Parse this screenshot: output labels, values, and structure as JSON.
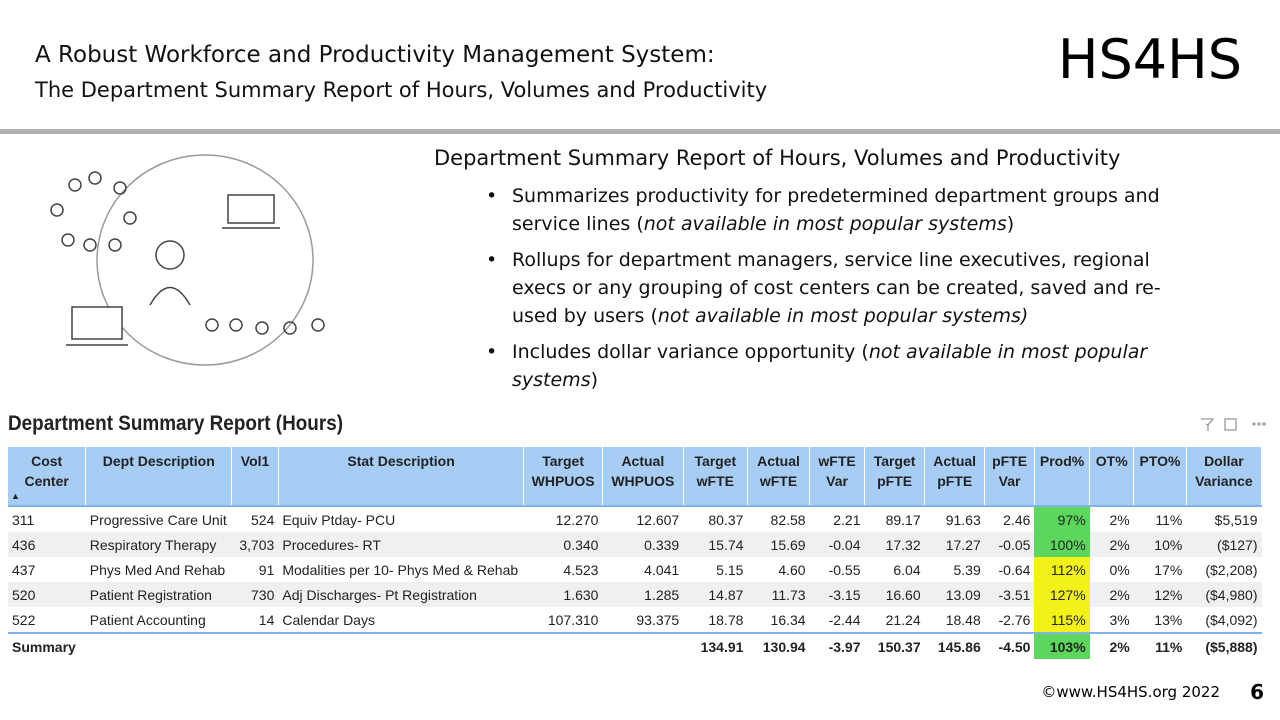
{
  "header": {
    "title": "A Robust Workforce and Productivity Management System:",
    "subtitle": "The Department Summary Report of Hours, Volumes and Productivity",
    "logo": "HS4HS"
  },
  "section": {
    "heading": "Department Summary Report of Hours, Volumes and Productivity",
    "bullets": [
      [
        "Summarizes productivity for predetermined department groups and service lines (",
        "not available in most  popular systems",
        ")"
      ],
      [
        "Rollups for department managers, service line executives, regional execs or any grouping of cost centers can be created, saved and re-used by users (",
        "not available in most  popular systems)"
      ],
      [
        "Includes dollar variance opportunity (",
        "not available in most popular systems",
        ")"
      ]
    ]
  },
  "table": {
    "title": "Department Summary Report (Hours)",
    "sort_indicator": "▲",
    "headers": [
      "Cost Center",
      "Dept Description",
      "Vol1",
      "Stat Description",
      "Target WHPUOS",
      "Actual WHPUOS",
      "Target wFTE",
      "Actual wFTE",
      "wFTE Var",
      "Target pFTE",
      "Actual pFTE",
      "pFTE Var",
      "Prod%",
      "OT%",
      "PTO%",
      "Dollar Variance"
    ],
    "rows": [
      [
        "311",
        "Progressive Care Unit",
        "524",
        "Equiv Ptday- PCU",
        "12.270",
        "12.607",
        "80.37",
        "82.58",
        "2.21",
        "89.17",
        "91.63",
        "2.46",
        "97%",
        "2%",
        "11%",
        "$5,519"
      ],
      [
        "436",
        "Respiratory Therapy",
        "3,703",
        "Procedures- RT",
        "0.340",
        "0.339",
        "15.74",
        "15.69",
        "-0.04",
        "17.32",
        "17.27",
        "-0.05",
        "100%",
        "2%",
        "10%",
        "($127)"
      ],
      [
        "437",
        "Phys Med And Rehab",
        "91",
        "Modalities per 10- Phys Med & Rehab",
        "4.523",
        "4.041",
        "5.15",
        "4.60",
        "-0.55",
        "6.04",
        "5.39",
        "-0.64",
        "112%",
        "0%",
        "17%",
        "($2,208)"
      ],
      [
        "520",
        "Patient Registration",
        "730",
        "Adj Discharges- Pt Registration",
        "1.630",
        "1.285",
        "14.87",
        "11.73",
        "-3.15",
        "16.60",
        "13.09",
        "-3.51",
        "127%",
        "2%",
        "12%",
        "($4,980)"
      ],
      [
        "522",
        "Patient Accounting",
        "14",
        "Calendar Days",
        "107.310",
        "93.375",
        "18.78",
        "16.34",
        "-2.44",
        "21.24",
        "18.48",
        "-2.76",
        "115%",
        "3%",
        "13%",
        "($4,092)"
      ]
    ],
    "row_prod_colors": [
      "#5cd65c",
      "#5cd65c",
      "#f2f21a",
      "#f2f21a",
      "#f2f21a"
    ],
    "summary": [
      "Summary",
      null,
      null,
      null,
      null,
      null,
      "134.91",
      "130.94",
      "-3.97",
      "150.37",
      "145.86",
      "-4.50",
      "103%",
      "2%",
      "11%",
      "($5,888)"
    ],
    "summary_prod_color": "#5cd65c"
  },
  "footer": {
    "copyright": "©www.HS4HS.org 2022",
    "page": "6"
  }
}
